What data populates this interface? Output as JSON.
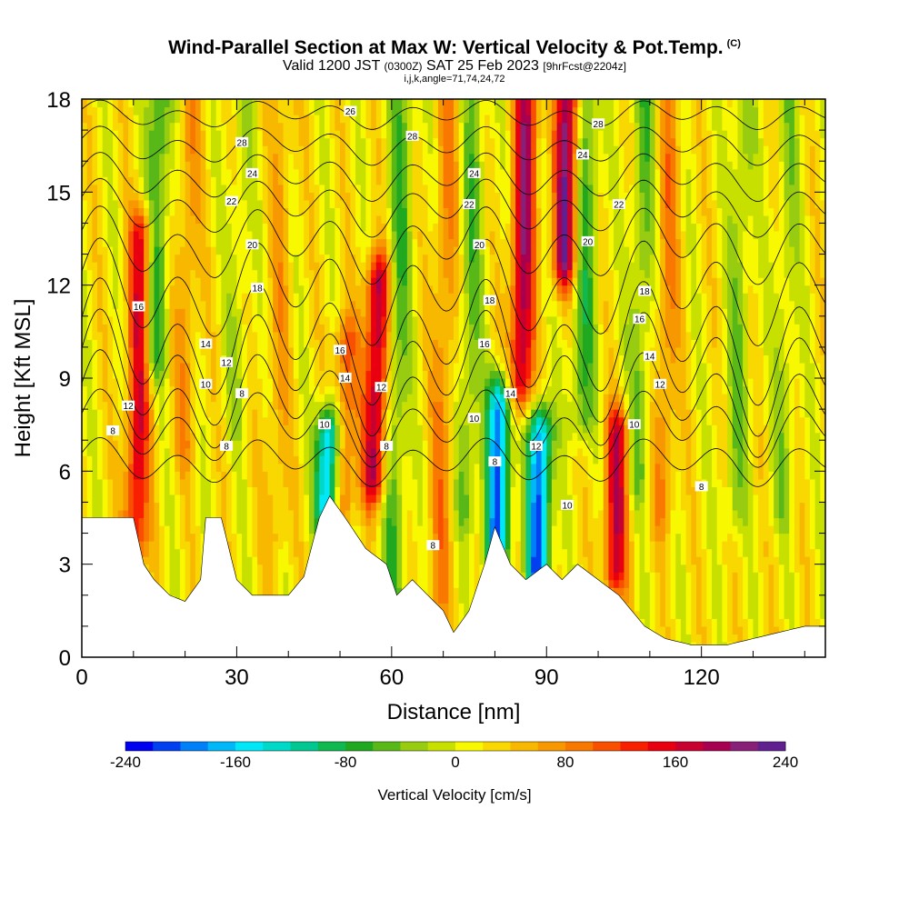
{
  "header": {
    "title": "Wind-Parallel Section at Max W: Vertical Velocity & Pot.Temp.",
    "copyright": "(C)",
    "subtitle_a": "Valid 1200 JST ",
    "subtitle_b": "(0300Z)",
    "subtitle_c": " SAT 25 Feb 2023 ",
    "subtitle_d": "[9hrFcst@2204z]",
    "params": "i,j,k,angle=71,74,24,72"
  },
  "chart_data": {
    "type": "heatmap",
    "xlabel": "Distance [nm]",
    "ylabel": "Height [Kft MSL]",
    "xlim": [
      0,
      144
    ],
    "ylim": [
      0,
      18
    ],
    "x_ticks": [
      0,
      30,
      60,
      90,
      120
    ],
    "y_ticks": [
      0,
      3,
      6,
      9,
      12,
      15,
      18
    ],
    "colorbar": {
      "label": "Vertical Velocity [cm/s]",
      "range": [
        -240,
        240
      ],
      "tick_values": [
        -240,
        -160,
        -80,
        0,
        80,
        160,
        240
      ],
      "tick_labels": [
        "-240",
        "-160",
        "-80",
        "0",
        "80",
        "160",
        "240"
      ],
      "colors": [
        "#0000f0",
        "#0040f0",
        "#0080f8",
        "#00b8f8",
        "#00e8f8",
        "#00d8c8",
        "#00c890",
        "#10b850",
        "#20a820",
        "#58b818",
        "#98cc10",
        "#c8e000",
        "#f8f800",
        "#f8d800",
        "#f8b800",
        "#f89800",
        "#f87800",
        "#f85000",
        "#f82000",
        "#e80010",
        "#c80030",
        "#a80050",
        "#882078",
        "#602090"
      ]
    },
    "w_columns": [
      {
        "x": 11,
        "w": 140,
        "top": 13.5,
        "bottom": 4
      },
      {
        "x": 14,
        "w": -90,
        "top": 18,
        "bottom": 10
      },
      {
        "x": 20,
        "w": 50,
        "top": 18,
        "bottom": 7
      },
      {
        "x": 30,
        "w": -30,
        "top": 18,
        "bottom": 8
      },
      {
        "x": 38,
        "w": 40,
        "top": 18,
        "bottom": 4
      },
      {
        "x": 48,
        "w": -200,
        "top": 7,
        "bottom": 5
      },
      {
        "x": 51,
        "w": 90,
        "top": 10,
        "bottom": 5
      },
      {
        "x": 57,
        "w": 170,
        "top": 12,
        "bottom": 6
      },
      {
        "x": 61,
        "w": -70,
        "top": 18,
        "bottom": 2
      },
      {
        "x": 70,
        "w": 60,
        "top": 18,
        "bottom": 2
      },
      {
        "x": 75,
        "w": -60,
        "top": 18,
        "bottom": 5
      },
      {
        "x": 81,
        "w": -210,
        "top": 8,
        "bottom": 3.5
      },
      {
        "x": 85,
        "w": 170,
        "top": 18,
        "bottom": 9
      },
      {
        "x": 89,
        "w": -220,
        "top": 7,
        "bottom": 3
      },
      {
        "x": 93,
        "w": 190,
        "top": 18,
        "bottom": 13
      },
      {
        "x": 97,
        "w": -80,
        "top": 18,
        "bottom": 8
      },
      {
        "x": 104,
        "w": 150,
        "top": 7,
        "bottom": 3
      },
      {
        "x": 108,
        "w": -60,
        "top": 18,
        "bottom": 6
      },
      {
        "x": 113,
        "w": 60,
        "top": 18,
        "bottom": 5
      },
      {
        "x": 127,
        "w": -50,
        "top": 18,
        "bottom": 5
      },
      {
        "x": 136,
        "w": -40,
        "top": 18,
        "bottom": 5
      }
    ],
    "terrain": [
      [
        0,
        4.5
      ],
      [
        10,
        4.5
      ],
      [
        12,
        3
      ],
      [
        14,
        2.5
      ],
      [
        17,
        2
      ],
      [
        20,
        1.8
      ],
      [
        23,
        2.5
      ],
      [
        24,
        4.5
      ],
      [
        27,
        4.5
      ],
      [
        30,
        2.5
      ],
      [
        33,
        2
      ],
      [
        40,
        2
      ],
      [
        43,
        2.6
      ],
      [
        46,
        4.5
      ],
      [
        48,
        5.2
      ],
      [
        51,
        4.5
      ],
      [
        55,
        3.5
      ],
      [
        59,
        3
      ],
      [
        61,
        2
      ],
      [
        64,
        2.5
      ],
      [
        67,
        2
      ],
      [
        70,
        1.5
      ],
      [
        72,
        0.8
      ],
      [
        75,
        1.5
      ],
      [
        78,
        3
      ],
      [
        80,
        4.2
      ],
      [
        83,
        3
      ],
      [
        86,
        2.5
      ],
      [
        90,
        3
      ],
      [
        93,
        2.5
      ],
      [
        96,
        3
      ],
      [
        100,
        2.5
      ],
      [
        104,
        2
      ],
      [
        109,
        1
      ],
      [
        113,
        0.6
      ],
      [
        118,
        0.4
      ],
      [
        125,
        0.4
      ],
      [
        130,
        0.6
      ],
      [
        140,
        1
      ],
      [
        144,
        1
      ]
    ],
    "theta_contours": [
      {
        "label": "8",
        "level": 8,
        "base": 6.3,
        "amp": 0.5
      },
      {
        "label": "10",
        "level": 10,
        "base": 7.4,
        "amp": 0.8
      },
      {
        "label": "12",
        "level": 12,
        "base": 8.2,
        "amp": 1.1
      },
      {
        "label": "14",
        "level": 14,
        "base": 9.2,
        "amp": 1.3
      },
      {
        "label": "16",
        "level": 16,
        "base": 10.2,
        "amp": 1.3
      },
      {
        "label": "18",
        "level": 18,
        "base": 11.8,
        "amp": 1.1
      },
      {
        "label": "20",
        "level": 20,
        "base": 13.3,
        "amp": 0.8
      },
      {
        "label": "22",
        "level": 22,
        "base": 14.5,
        "amp": 0.6
      },
      {
        "label": "24",
        "level": 24,
        "base": 15.5,
        "amp": 0.5
      },
      {
        "label": "26",
        "level": 26,
        "base": 16.5,
        "amp": 0.4
      },
      {
        "label": "28",
        "level": 28,
        "base": 17.5,
        "amp": 0.3
      }
    ],
    "contour_labels": [
      {
        "text": "8",
        "x": 6,
        "y": 7.3
      },
      {
        "text": "12",
        "x": 9,
        "y": 8.1
      },
      {
        "text": "16",
        "x": 11,
        "y": 11.3
      },
      {
        "text": "14",
        "x": 24,
        "y": 10.1
      },
      {
        "text": "12",
        "x": 28,
        "y": 9.5
      },
      {
        "text": "10",
        "x": 24,
        "y": 8.8
      },
      {
        "text": "8",
        "x": 31,
        "y": 8.5
      },
      {
        "text": "8",
        "x": 28,
        "y": 6.8
      },
      {
        "text": "28",
        "x": 31,
        "y": 16.6
      },
      {
        "text": "24",
        "x": 33,
        "y": 15.6
      },
      {
        "text": "22",
        "x": 29,
        "y": 14.7
      },
      {
        "text": "20",
        "x": 33,
        "y": 13.3
      },
      {
        "text": "18",
        "x": 34,
        "y": 11.9
      },
      {
        "text": "26",
        "x": 52,
        "y": 17.6
      },
      {
        "text": "28",
        "x": 64,
        "y": 16.8
      },
      {
        "text": "24",
        "x": 76,
        "y": 15.6
      },
      {
        "text": "22",
        "x": 75,
        "y": 14.6
      },
      {
        "text": "20",
        "x": 77,
        "y": 13.3
      },
      {
        "text": "18",
        "x": 79,
        "y": 11.5
      },
      {
        "text": "16",
        "x": 78,
        "y": 10.1
      },
      {
        "text": "16",
        "x": 50,
        "y": 9.9
      },
      {
        "text": "14",
        "x": 51,
        "y": 9.0
      },
      {
        "text": "12",
        "x": 58,
        "y": 8.7
      },
      {
        "text": "10",
        "x": 47,
        "y": 7.5
      },
      {
        "text": "8",
        "x": 59,
        "y": 6.8
      },
      {
        "text": "14",
        "x": 83,
        "y": 8.5
      },
      {
        "text": "10",
        "x": 76,
        "y": 7.7
      },
      {
        "text": "8",
        "x": 80,
        "y": 6.3
      },
      {
        "text": "12",
        "x": 88,
        "y": 6.8
      },
      {
        "text": "10",
        "x": 94,
        "y": 4.9
      },
      {
        "text": "8",
        "x": 68,
        "y": 3.6
      },
      {
        "text": "28",
        "x": 100,
        "y": 17.2
      },
      {
        "text": "24",
        "x": 97,
        "y": 16.2
      },
      {
        "text": "22",
        "x": 104,
        "y": 14.6
      },
      {
        "text": "20",
        "x": 98,
        "y": 13.4
      },
      {
        "text": "18",
        "x": 109,
        "y": 11.8
      },
      {
        "text": "16",
        "x": 108,
        "y": 10.9
      },
      {
        "text": "14",
        "x": 110,
        "y": 9.7
      },
      {
        "text": "12",
        "x": 112,
        "y": 8.8
      },
      {
        "text": "10",
        "x": 107,
        "y": 7.5
      },
      {
        "text": "8",
        "x": 120,
        "y": 5.5
      }
    ]
  }
}
